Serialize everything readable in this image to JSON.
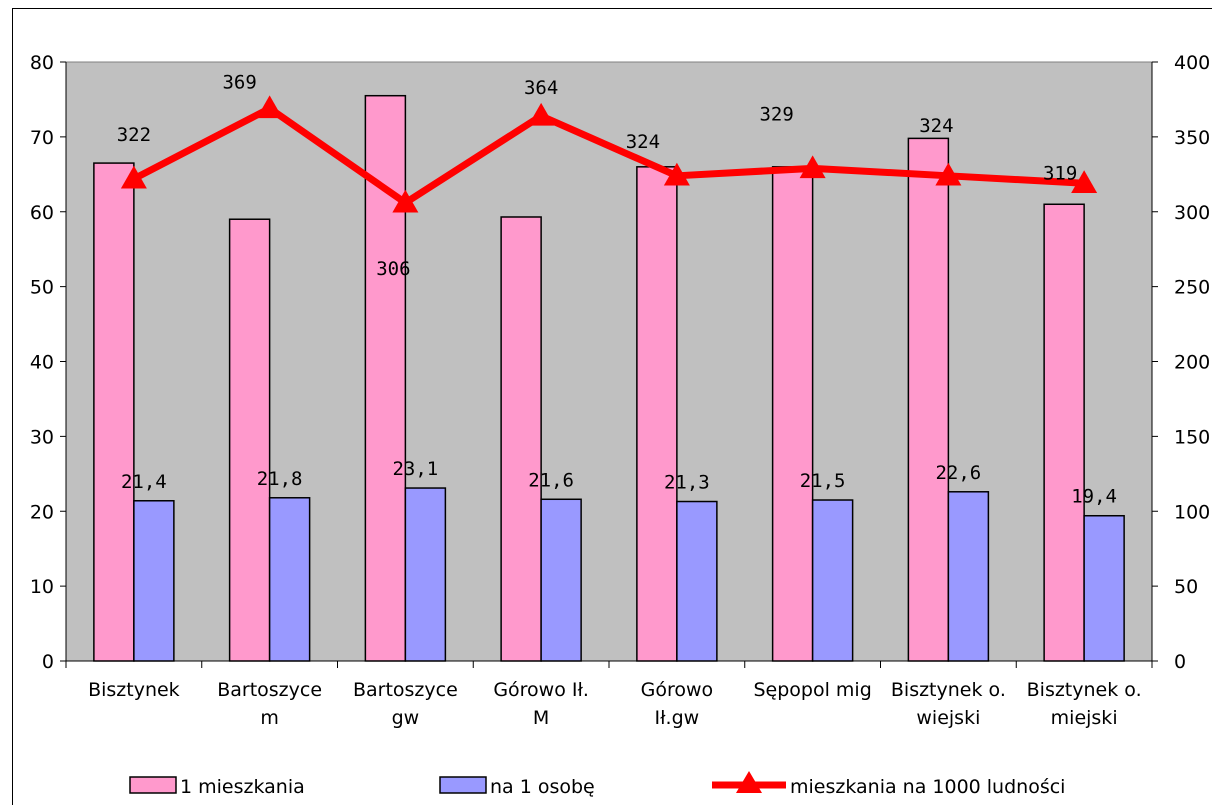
{
  "chart_data": {
    "type": "bar",
    "title": "",
    "categories": [
      [
        "Bisztynek"
      ],
      [
        "Bartoszyce",
        "m"
      ],
      [
        "Bartoszyce",
        "gw"
      ],
      [
        "Górowo Ił.",
        "M"
      ],
      [
        "Górowo",
        "Ił.gw"
      ],
      [
        "Sępopol mig"
      ],
      [
        "Bisztynek o.",
        "wiejski"
      ],
      [
        "Bisztynek o.",
        "miejski"
      ]
    ],
    "y_left": {
      "min": 0,
      "max": 80,
      "ticks": [
        "0",
        "10",
        "20",
        "30",
        "40",
        "50",
        "60",
        "70",
        "80"
      ]
    },
    "y_right": {
      "min": 0,
      "max": 400,
      "ticks": [
        "0",
        "50",
        "100",
        "150",
        "200",
        "250",
        "300",
        "350",
        "400"
      ]
    },
    "series": [
      {
        "name": "1 mieszkania",
        "type": "bar",
        "axis": "left",
        "color": "#ff99cc",
        "values": [
          66.5,
          59,
          75.5,
          59.3,
          66,
          66,
          69.8,
          61
        ]
      },
      {
        "name": "na 1 osobę",
        "type": "bar",
        "axis": "left",
        "color": "#9999ff",
        "values": [
          21.4,
          21.8,
          23.1,
          21.6,
          21.3,
          21.5,
          22.6,
          19.4
        ],
        "labels": [
          "21,4",
          "21,8",
          "23,1",
          "21,6",
          "21,3",
          "21,5",
          "22,6",
          "19,4"
        ]
      },
      {
        "name": "mieszkania na 1000 ludności",
        "type": "line",
        "axis": "right",
        "color": "#ff0000",
        "values": [
          322,
          369,
          306,
          364,
          324,
          329,
          324,
          319
        ],
        "labels": [
          "322",
          "369",
          "306",
          "364",
          "324",
          "329",
          "324",
          "319"
        ]
      }
    ],
    "plot_background": "#c0c0c0",
    "legend_position": "bottom"
  }
}
